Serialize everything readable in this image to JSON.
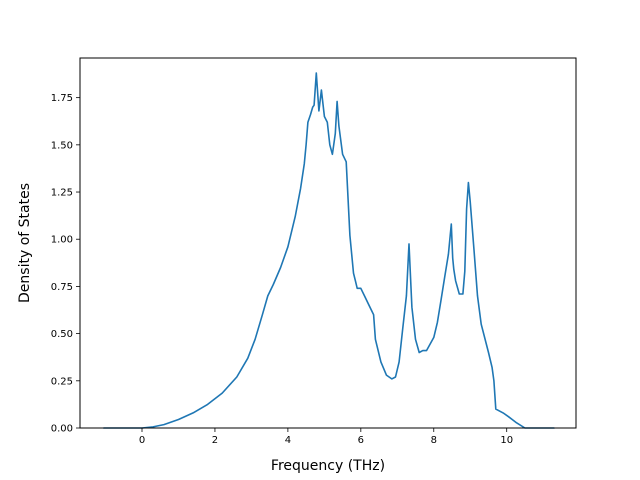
{
  "chart_data": {
    "type": "line",
    "title": "",
    "xlabel": "Frequency (THz)",
    "ylabel": "Density of States",
    "xlim": [
      -1.7,
      11.9
    ],
    "ylim": [
      0,
      1.96
    ],
    "x_ticks": [
      0,
      2,
      4,
      6,
      8,
      10
    ],
    "x_tick_labels": [
      "0",
      "2",
      "4",
      "6",
      "8",
      "10"
    ],
    "y_ticks": [
      0,
      0.25,
      0.5,
      0.75,
      1.0,
      1.25,
      1.5,
      1.75
    ],
    "y_tick_labels": [
      "0.00",
      "0.25",
      "0.50",
      "0.75",
      "1.00",
      "1.25",
      "1.50",
      "1.75"
    ],
    "grid": false,
    "legend": "none",
    "line_color": "#1f77b4",
    "series": [
      {
        "x": [
          -1.05,
          0.0,
          0.3,
          0.6,
          1.0,
          1.4,
          1.8,
          2.2,
          2.6,
          2.9,
          3.1,
          3.3,
          3.45,
          3.6,
          3.8,
          4.0,
          4.2,
          4.35,
          4.45,
          4.5,
          4.55,
          4.62,
          4.68,
          4.72,
          4.78,
          4.85,
          4.92,
          5.0,
          5.08,
          5.15,
          5.22,
          5.3,
          5.35,
          5.4,
          5.5,
          5.6,
          5.7,
          5.8,
          5.85,
          5.9,
          6.0,
          6.1,
          6.2,
          6.3,
          6.35,
          6.4,
          6.55,
          6.7,
          6.85,
          6.95,
          7.05,
          7.15,
          7.25,
          7.32,
          7.4,
          7.5,
          7.6,
          7.7,
          7.8,
          8.0,
          8.1,
          8.2,
          8.3,
          8.4,
          8.48,
          8.52,
          8.55,
          8.6,
          8.7,
          8.8,
          8.85,
          8.9,
          8.95,
          9.0,
          9.1,
          9.2,
          9.3,
          9.5,
          9.6,
          9.65,
          9.7,
          9.9,
          10.05,
          10.15,
          10.25,
          10.5,
          11.3
        ],
        "y": [
          0.0,
          0.0,
          0.006,
          0.018,
          0.045,
          0.08,
          0.125,
          0.185,
          0.27,
          0.37,
          0.47,
          0.6,
          0.7,
          0.76,
          0.85,
          0.96,
          1.12,
          1.27,
          1.4,
          1.5,
          1.62,
          1.66,
          1.7,
          1.71,
          1.88,
          1.68,
          1.79,
          1.65,
          1.62,
          1.5,
          1.45,
          1.56,
          1.73,
          1.6,
          1.45,
          1.41,
          1.02,
          0.82,
          0.78,
          0.74,
          0.74,
          0.7,
          0.66,
          0.62,
          0.6,
          0.47,
          0.35,
          0.28,
          0.26,
          0.27,
          0.35,
          0.53,
          0.7,
          0.975,
          0.64,
          0.47,
          0.4,
          0.41,
          0.41,
          0.48,
          0.56,
          0.68,
          0.8,
          0.92,
          1.08,
          0.9,
          0.84,
          0.78,
          0.71,
          0.71,
          0.83,
          1.16,
          1.3,
          1.2,
          0.95,
          0.7,
          0.55,
          0.4,
          0.32,
          0.25,
          0.1,
          0.08,
          0.06,
          0.045,
          0.03,
          0.0,
          0.0
        ]
      }
    ]
  }
}
